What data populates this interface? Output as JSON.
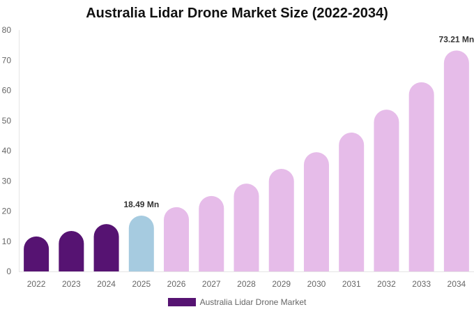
{
  "chart_data": {
    "type": "bar",
    "title": "Australia Lidar Drone Market Size (2022-2034)",
    "categories": [
      "2022",
      "2023",
      "2024",
      "2025",
      "2026",
      "2027",
      "2028",
      "2029",
      "2030",
      "2031",
      "2032",
      "2033",
      "2034"
    ],
    "series": [
      {
        "name": "Australia Lidar Drone Market",
        "values": [
          11.6,
          13.4,
          15.7,
          18.49,
          21.3,
          25.0,
          29.1,
          34.0,
          39.5,
          46.0,
          53.6,
          62.7,
          73.21
        ]
      }
    ],
    "data_labels": {
      "3": "18.49 Mn",
      "12": "73.21 Mn"
    },
    "ylim": [
      0,
      80
    ],
    "yticks": [
      0,
      10,
      20,
      30,
      40,
      50,
      60,
      70,
      80
    ],
    "xlabel": "",
    "ylabel": "",
    "grid": false,
    "legend_position": "bottom",
    "colors": {
      "historical": "#561372",
      "current": "#a6cbe0",
      "forecast": "#e6bce9",
      "legend": "#561372"
    },
    "color_groups": [
      "historical",
      "historical",
      "historical",
      "current",
      "forecast",
      "forecast",
      "forecast",
      "forecast",
      "forecast",
      "forecast",
      "forecast",
      "forecast",
      "forecast"
    ]
  }
}
